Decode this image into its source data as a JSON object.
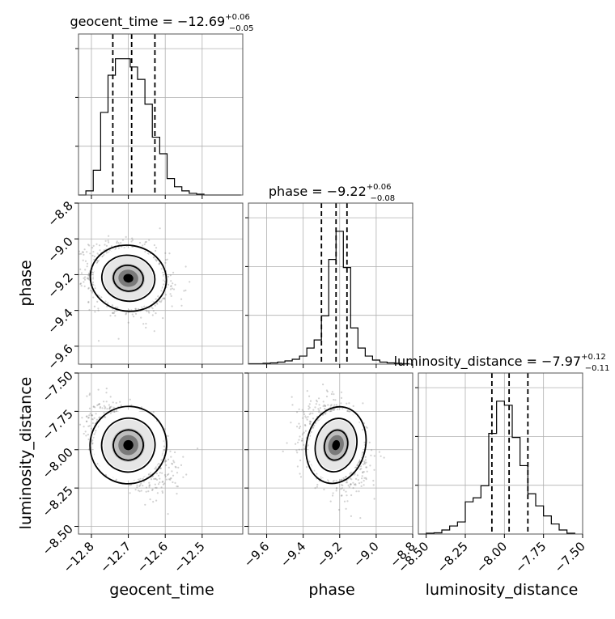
{
  "chart_data": {
    "type": "corner",
    "parameters": [
      {
        "name": "geocent_time",
        "range": [
          -12.835,
          -12.39
        ],
        "ticks": [
          -12.8,
          -12.7,
          -12.6,
          -12.5
        ],
        "tick_labels": [
          "−12.8",
          "−12.7",
          "−12.6",
          "−12.5"
        ],
        "title": {
          "prefix": "geocent_time = −12.69",
          "sup": "+0.06",
          "sub": "−0.05"
        },
        "quantiles": [
          -12.742,
          -12.691,
          -12.628
        ],
        "hist_bins": [
          -12.835,
          -12.815,
          -12.795,
          -12.775,
          -12.755,
          -12.735,
          -12.715,
          -12.695,
          -12.675,
          -12.655,
          -12.635,
          -12.615,
          -12.595,
          -12.575,
          -12.555,
          -12.535,
          -12.515,
          -12.495,
          -12.475,
          -12.455,
          -12.435,
          -12.415,
          -12.395
        ],
        "hist_counts": [
          0,
          5,
          30,
          100,
          145,
          165,
          165,
          155,
          140,
          110,
          70,
          50,
          20,
          10,
          5,
          2,
          1,
          0,
          0,
          0,
          0,
          0
        ],
        "hist_ymax": 195
      },
      {
        "name": "phase",
        "range": [
          -9.7,
          -8.8
        ],
        "ticks": [
          -9.6,
          -9.4,
          -9.2,
          -9.0,
          -8.8
        ],
        "tick_labels": [
          "−9.6",
          "−9.4",
          "−9.2",
          "−9.0",
          "−8.8"
        ],
        "title": {
          "prefix": "phase = −9.22",
          "sup": "+0.06",
          "sub": "−0.08"
        },
        "quantiles": [
          -9.3,
          -9.22,
          -9.16
        ],
        "hist_bins": [
          -9.7,
          -9.66,
          -9.62,
          -9.58,
          -9.54,
          -9.5,
          -9.46,
          -9.42,
          -9.38,
          -9.34,
          -9.3,
          -9.26,
          -9.22,
          -9.18,
          -9.14,
          -9.1,
          -9.06,
          -9.02,
          -8.98,
          -8.94,
          -8.9,
          -8.86,
          -8.82
        ],
        "hist_counts": [
          1,
          1,
          2,
          3,
          5,
          8,
          12,
          20,
          40,
          60,
          120,
          260,
          330,
          240,
          90,
          40,
          20,
          10,
          5,
          3,
          2,
          1
        ],
        "hist_ymax": 400
      },
      {
        "name": "luminosity_distance",
        "range": [
          -8.55,
          -7.5
        ],
        "ticks": [
          -8.5,
          -8.25,
          -8.0,
          -7.75,
          -7.5
        ],
        "tick_labels": [
          "−8.50",
          "−8.25",
          "−8.00",
          "−7.75",
          "−7.50"
        ],
        "title": {
          "prefix": "luminosity_distance = −7.97",
          "sup": "+0.12",
          "sub": "−0.11"
        },
        "quantiles": [
          -8.08,
          -7.97,
          -7.85
        ],
        "hist_bins": [
          -8.55,
          -8.5,
          -8.45,
          -8.4,
          -8.35,
          -8.3,
          -8.25,
          -8.2,
          -8.15,
          -8.1,
          -8.05,
          -8.0,
          -7.95,
          -7.9,
          -7.85,
          -7.8,
          -7.75,
          -7.7,
          -7.65,
          -7.6,
          -7.55
        ],
        "hist_counts": [
          0,
          2,
          3,
          10,
          20,
          30,
          80,
          90,
          120,
          250,
          330,
          320,
          240,
          170,
          100,
          70,
          45,
          25,
          10,
          2
        ],
        "hist_ymax": 400
      }
    ],
    "pairs": [
      {
        "x": 0,
        "y": 1,
        "center": [
          -12.7,
          -9.22
        ],
        "sigma": [
          0.045,
          0.08
        ],
        "rho": -0.2
      },
      {
        "x": 0,
        "y": 2,
        "center": [
          -12.7,
          -7.97
        ],
        "sigma": [
          0.045,
          0.11
        ],
        "rho": -0.55
      },
      {
        "x": 1,
        "y": 2,
        "center": [
          -9.22,
          -7.97
        ],
        "sigma": [
          0.07,
          0.11
        ],
        "rho": -0.3
      }
    ],
    "grid": true,
    "colors": {
      "line": "#000000",
      "scatter": "#7f7f7f",
      "density_max": "#000000",
      "grid": "#b0b0b0",
      "spine": "#555555"
    }
  }
}
